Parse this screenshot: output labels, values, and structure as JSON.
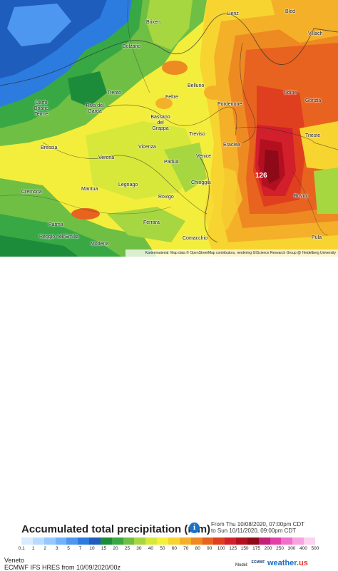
{
  "map": {
    "peak_value": "126",
    "attribution": "Kartenmaterial: Map data © OpenStreetMap contributors, rendering GIScience Research Group @ Heidelberg University",
    "cities": [
      {
        "name": "Brixen"
      },
      {
        "name": "Bolzano"
      },
      {
        "name": "Lienz"
      },
      {
        "name": "Villach"
      },
      {
        "name": "Trento"
      },
      {
        "name": "Belluno"
      },
      {
        "name": "Feltre"
      },
      {
        "name": "Udine"
      },
      {
        "name": "Gorizia"
      },
      {
        "name": "Pordenone"
      },
      {
        "name": "Riva del Garda"
      },
      {
        "name": "Darfo Boario Terme"
      },
      {
        "name": "Bassano del Grappa"
      },
      {
        "name": "Treviso"
      },
      {
        "name": "Trieste"
      },
      {
        "name": "Eraclea"
      },
      {
        "name": "Vicenza"
      },
      {
        "name": "Venice"
      },
      {
        "name": "Brescia"
      },
      {
        "name": "Verona"
      },
      {
        "name": "Padua"
      },
      {
        "name": "Chioggia"
      },
      {
        "name": "Cremona"
      },
      {
        "name": "Mantua"
      },
      {
        "name": "Legnago"
      },
      {
        "name": "Rovigo"
      },
      {
        "name": "Rovinj"
      },
      {
        "name": "Parma"
      },
      {
        "name": "Reggio nell'Emilia"
      },
      {
        "name": "Modena"
      },
      {
        "name": "Ferrara"
      },
      {
        "name": "Comacchio"
      },
      {
        "name": "Pula"
      },
      {
        "name": "Bled"
      }
    ]
  },
  "legend": {
    "title": "Accumulated total precipitation (mm)",
    "info_icon": "i",
    "range_line1": "From Thu 10/08/2020, 07:00pm CDT",
    "range_line2": "to Sun 10/11/2020, 09:00pm CDT",
    "ticks": [
      "0.1",
      "1",
      "2",
      "3",
      "5",
      "7",
      "10",
      "15",
      "20",
      "25",
      "30",
      "40",
      "50",
      "60",
      "70",
      "80",
      "90",
      "100",
      "125",
      "150",
      "175",
      "200",
      "250",
      "300",
      "400",
      "500"
    ],
    "colors": [
      "#d9ecff",
      "#b8dcff",
      "#96c8ff",
      "#73b2fb",
      "#4d97f0",
      "#2c7ce0",
      "#1f5dbd",
      "#1d8c3a",
      "#38a845",
      "#6fbf45",
      "#a6d640",
      "#d8e83a",
      "#f5f03a",
      "#f7d430",
      "#f4b028",
      "#ee8a22",
      "#e8631f",
      "#df3e1f",
      "#d11f2b",
      "#b3101f",
      "#8e0a19",
      "#c41f7a",
      "#e43fa8",
      "#f06fc9",
      "#f8a3df",
      "#fbd2ef"
    ]
  },
  "footer": {
    "region": "Veneto",
    "model": "ECMWF IFS HRES from 10/09/2020/00z",
    "model_label": "Model:",
    "ecmwf_logo": "ECMWF",
    "brand_main": "weather.",
    "brand_accent": "us"
  }
}
